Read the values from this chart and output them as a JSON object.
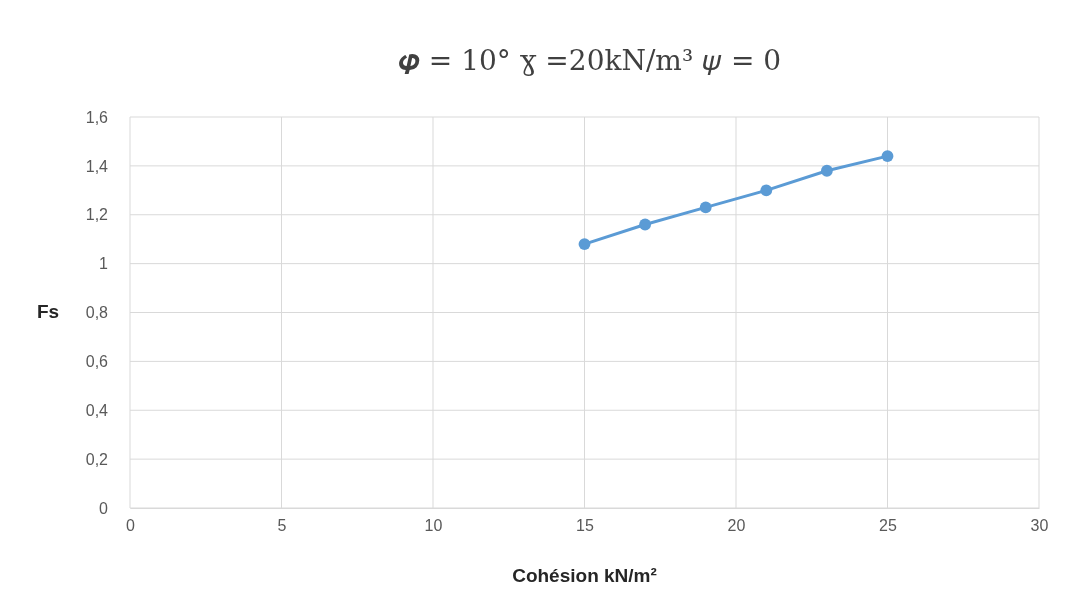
{
  "chart_data": {
    "type": "line",
    "title": "𝝋 = 10°  ɣ =20kN/m³  𝜓 = 0",
    "xlabel": "Cohésion kN/m²",
    "ylabel": "Fs",
    "x": [
      15,
      17,
      19,
      21,
      23,
      25
    ],
    "series": [
      {
        "color": "#5b9bd5",
        "values": [
          1.08,
          1.16,
          1.23,
          1.3,
          1.38,
          1.44
        ]
      }
    ],
    "xlim": [
      0,
      30
    ],
    "xticks": [
      0,
      5,
      10,
      15,
      20,
      25,
      30
    ],
    "ylim": [
      0,
      1.6
    ],
    "yticks": [
      0,
      {
        "value": 0.2,
        "label": "0,2"
      },
      {
        "value": 0.4,
        "label": "0,4"
      },
      {
        "value": 0.6,
        "label": "0,6"
      },
      {
        "value": 0.8,
        "label": "0,8"
      },
      1,
      {
        "value": 1.2,
        "label": "1,2"
      },
      {
        "value": 1.4,
        "label": "1,4"
      },
      {
        "value": 1.6,
        "label": "1,6"
      }
    ],
    "grid": true,
    "marker": "circle",
    "line_style": "solid"
  }
}
